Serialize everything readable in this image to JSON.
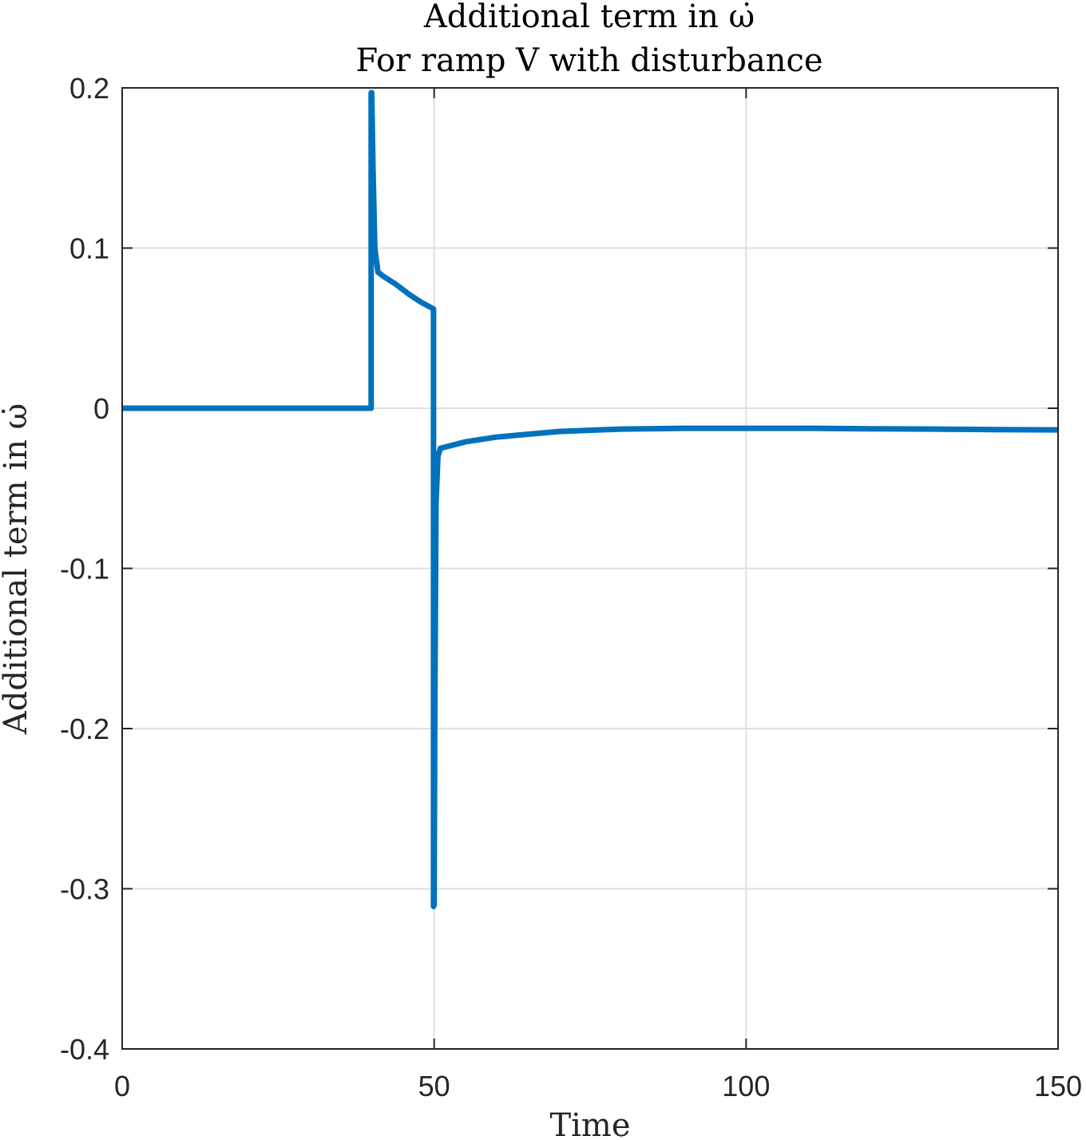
{
  "chart_data": {
    "type": "line",
    "title_line1": "Additional term in ω̇",
    "title_line2": "For ramp V with disturbance",
    "xlabel": "Time",
    "ylabel": "Additional term in ω̇",
    "xlim": [
      0,
      150
    ],
    "ylim": [
      -0.4,
      0.2
    ],
    "xticks": [
      0,
      50,
      100,
      150
    ],
    "xtick_labels": [
      "0",
      "50",
      "100",
      "150"
    ],
    "yticks": [
      0.2,
      0.1,
      0,
      -0.1,
      -0.2,
      -0.3,
      -0.4
    ],
    "ytick_labels": [
      "0.2",
      "0.1",
      "0",
      "-0.1",
      "-0.2",
      "-0.3",
      "-0.4"
    ],
    "grid": true,
    "line_color": "#0072BD",
    "series": [
      {
        "x": [
          0,
          39.9,
          39.9,
          40.0,
          40.2,
          40.5,
          41,
          42,
          44,
          46,
          48,
          49.9,
          49.9,
          50.0,
          50.1,
          50.3,
          50.6,
          51,
          52,
          55,
          60,
          70,
          80,
          90,
          100,
          110,
          120,
          130,
          140,
          150
        ],
        "y": [
          0,
          0,
          0.197,
          0.197,
          0.15,
          0.1,
          0.085,
          0.082,
          0.077,
          0.071,
          0.066,
          0.062,
          -0.311,
          -0.31,
          -0.2,
          -0.06,
          -0.03,
          -0.025,
          -0.024,
          -0.021,
          -0.018,
          -0.0145,
          -0.013,
          -0.0125,
          -0.0125,
          -0.0125,
          -0.0128,
          -0.013,
          -0.0133,
          -0.0135
        ]
      }
    ]
  }
}
